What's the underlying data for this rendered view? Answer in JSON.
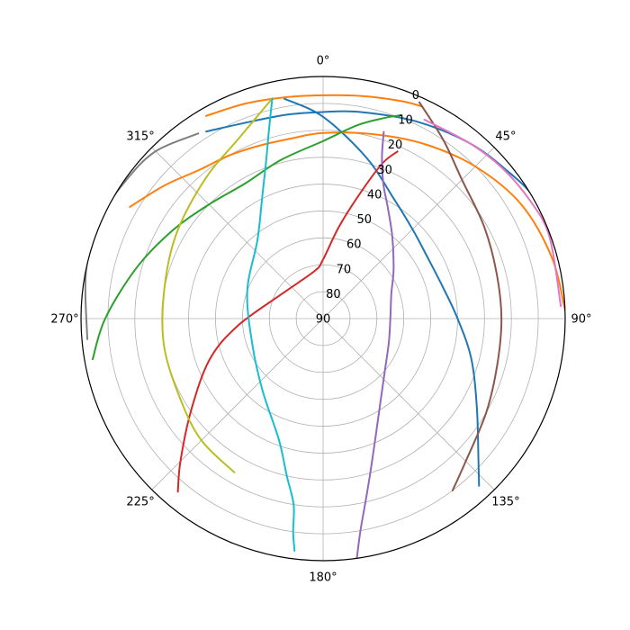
{
  "chart_data": {
    "type": "polar-line",
    "projection": "sky (zenith at center, elevation on radial axis)",
    "theta_zero_location": "N",
    "theta_direction": "clockwise",
    "r_axis": {
      "label_values": [
        0,
        10,
        20,
        30,
        40,
        50,
        60,
        70,
        80,
        90
      ],
      "reversed": true,
      "range": [
        90,
        0
      ]
    },
    "theta_ticks": [
      {
        "deg": 0,
        "label": "0°"
      },
      {
        "deg": 45,
        "label": "45°"
      },
      {
        "deg": 90,
        "label": "90°"
      },
      {
        "deg": 135,
        "label": "135°"
      },
      {
        "deg": 180,
        "label": "180°"
      },
      {
        "deg": 225,
        "label": "225°"
      },
      {
        "deg": 270,
        "label": "270°"
      },
      {
        "deg": 315,
        "label": "315°"
      }
    ],
    "grid": true,
    "series": [
      {
        "color": "#1f77b4",
        "points": [
          [
            -32,
            8
          ],
          [
            -20,
            12
          ],
          [
            -10,
            13
          ],
          [
            0,
            13.2
          ],
          [
            10,
            12
          ],
          [
            25,
            9
          ],
          [
            40,
            5
          ],
          [
            52,
            2
          ],
          [
            60,
            -0.5
          ],
          [
            70,
            -3
          ]
        ]
      },
      {
        "color": "#1f77b4",
        "points": [
          [
            -10,
            7
          ],
          [
            0,
            15
          ],
          [
            15,
            28
          ],
          [
            30,
            38
          ],
          [
            45,
            43
          ],
          [
            60,
            45
          ],
          [
            75,
            44
          ],
          [
            90,
            40
          ],
          [
            105,
            33
          ],
          [
            120,
            24
          ],
          [
            133,
            11
          ],
          [
            137,
            5
          ]
        ]
      },
      {
        "color": "#ff7f0e",
        "points": [
          [
            -30,
            3
          ],
          [
            -20,
            5
          ],
          [
            -10,
            6.5
          ],
          [
            0,
            7
          ],
          [
            10,
            6
          ],
          [
            20,
            4
          ],
          [
            25,
            3
          ]
        ]
      },
      {
        "color": "#ff7f0e",
        "points": [
          [
            -60,
            7
          ],
          [
            -50,
            13
          ],
          [
            -40,
            18
          ],
          [
            -30,
            20
          ],
          [
            -20,
            21.5
          ],
          [
            -10,
            22
          ],
          [
            0,
            21
          ],
          [
            15,
            19
          ],
          [
            30,
            15
          ],
          [
            45,
            10
          ],
          [
            60,
            5
          ],
          [
            75,
            2
          ],
          [
            88,
            0
          ]
        ]
      },
      {
        "color": "#2ca02c",
        "points": [
          [
            -100,
            3
          ],
          [
            -90,
            9
          ],
          [
            -75,
            18
          ],
          [
            -60,
            25
          ],
          [
            -45,
            30
          ],
          [
            -30,
            32
          ],
          [
            -15,
            29
          ],
          [
            0,
            24
          ],
          [
            10,
            17
          ],
          [
            17,
            12
          ],
          [
            21,
            9
          ]
        ]
      },
      {
        "color": "#d62728",
        "points": [
          [
            -140,
            6
          ],
          [
            -135,
            15
          ],
          [
            -125,
            30
          ],
          [
            -110,
            45
          ],
          [
            -95,
            58
          ],
          [
            -60,
            72
          ],
          [
            -10,
            72
          ],
          [
            0,
            68
          ],
          [
            10,
            55
          ],
          [
            17,
            40
          ],
          [
            21,
            28
          ],
          [
            24,
            22
          ]
        ]
      },
      {
        "color": "#9467bd",
        "points": [
          [
            172,
            0
          ],
          [
            170,
            10
          ],
          [
            167,
            20
          ],
          [
            163,
            30
          ],
          [
            156,
            42
          ],
          [
            146,
            52
          ],
          [
            130,
            60
          ],
          [
            110,
            64
          ],
          [
            90,
            65
          ],
          [
            70,
            63
          ],
          [
            55,
            58
          ],
          [
            40,
            50
          ],
          [
            30,
            42
          ],
          [
            24,
            35
          ],
          [
            20,
            26
          ],
          [
            18,
            17
          ]
        ]
      },
      {
        "color": "#8c564b",
        "points": [
          [
            24,
            2
          ],
          [
            34,
            10
          ],
          [
            45,
            17
          ],
          [
            60,
            21
          ],
          [
            75,
            23.3
          ],
          [
            90,
            23.7
          ],
          [
            105,
            23
          ],
          [
            120,
            20
          ],
          [
            135,
            15
          ],
          [
            143,
            10
          ]
        ]
      },
      {
        "color": "#e377c2",
        "points": [
          [
            27,
            7
          ],
          [
            40,
            5
          ],
          [
            50,
            3
          ],
          [
            60,
            1.5
          ],
          [
            70,
            0.5
          ],
          [
            87,
            1.5
          ]
        ]
      },
      {
        "color": "#7f7f7f",
        "points": [
          [
            -34,
            7
          ],
          [
            -45,
            2
          ],
          [
            -55,
            0.5
          ],
          [
            -65,
            -0.5
          ],
          [
            -78,
            0
          ],
          [
            -95,
            2
          ]
        ]
      },
      {
        "color": "#bcbd22",
        "points": [
          [
            -13,
            6
          ],
          [
            -25,
            16
          ],
          [
            -40,
            22
          ],
          [
            -60,
            27
          ],
          [
            -80,
            30
          ],
          [
            -100,
            30
          ],
          [
            -120,
            29
          ],
          [
            -135,
            26
          ],
          [
            -150,
            24
          ]
        ]
      },
      {
        "color": "#17becf",
        "points": [
          [
            -13,
            6
          ],
          [
            -16,
            17
          ],
          [
            -20,
            28
          ],
          [
            -27,
            40
          ],
          [
            -40,
            52
          ],
          [
            -70,
            60
          ],
          [
            -110,
            62
          ],
          [
            -140,
            55
          ],
          [
            -160,
            42
          ],
          [
            -167,
            30
          ],
          [
            -171,
            20
          ],
          [
            -172,
            10
          ],
          [
            -173,
            3
          ]
        ]
      }
    ]
  }
}
